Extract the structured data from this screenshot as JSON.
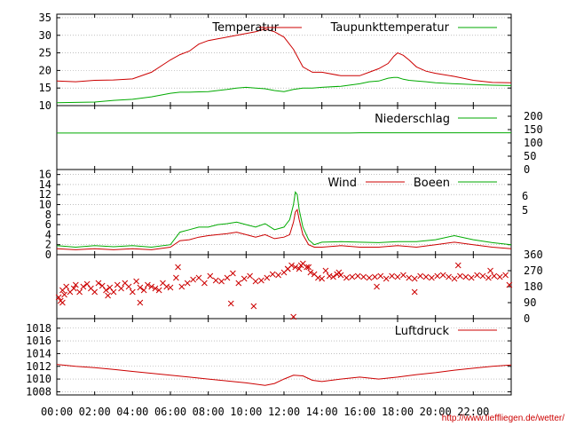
{
  "chart_data": [
    {
      "type": "line",
      "panel": "temperature",
      "title": "",
      "ylim": [
        10,
        36
      ],
      "yticks": [
        "10",
        "15",
        "20",
        "25",
        "30",
        "35"
      ],
      "grid": true,
      "legend_placement": "top-right",
      "x_hours": [
        0,
        1,
        2,
        3,
        4,
        5,
        6,
        6.5,
        7,
        7.5,
        8,
        8.5,
        9,
        9.5,
        10,
        10.5,
        11,
        11.5,
        12,
        12.5,
        13,
        13.5,
        14,
        15,
        16,
        16.5,
        17,
        17.5,
        17.8,
        18,
        18.3,
        18.6,
        19,
        19.5,
        20,
        21,
        22,
        23,
        24
      ],
      "series": [
        {
          "name": "Temperatur",
          "color": "#cc0000",
          "values": [
            17.0,
            16.8,
            17.2,
            17.3,
            17.6,
            19.5,
            23.0,
            24.5,
            25.5,
            27.5,
            28.5,
            29.0,
            29.5,
            30.0,
            30.5,
            31.0,
            31.8,
            31.0,
            29.5,
            26.0,
            21.0,
            19.5,
            19.5,
            18.5,
            18.5,
            19.5,
            20.5,
            22.0,
            24.0,
            25.0,
            24.3,
            23.0,
            21.0,
            19.8,
            19.2,
            18.3,
            17.2,
            16.6,
            16.5
          ]
        },
        {
          "name": "Taupunkttemperatur",
          "color": "#00aa00",
          "values": [
            10.8,
            10.9,
            11.0,
            11.5,
            11.8,
            12.5,
            13.5,
            13.8,
            13.8,
            13.9,
            14.0,
            14.3,
            14.6,
            15.0,
            15.2,
            15.0,
            14.8,
            14.3,
            14.0,
            14.6,
            15.0,
            15.0,
            15.2,
            15.5,
            16.2,
            16.8,
            17.0,
            17.8,
            18.0,
            18.0,
            17.5,
            17.2,
            17.0,
            16.8,
            16.5,
            16.2,
            16.0,
            15.8,
            15.7
          ]
        }
      ]
    },
    {
      "type": "line",
      "panel": "precipitation",
      "ylim": [
        0,
        240
      ],
      "yticks": [
        "0",
        "50",
        "100",
        "150",
        "200"
      ],
      "legend_placement": "top-right",
      "x_hours": [
        0,
        15.5,
        16,
        24
      ],
      "series": [
        {
          "name": "Niederschlag",
          "color": "#00aa00",
          "values": [
            137,
            137,
            138,
            138
          ]
        }
      ]
    },
    {
      "type": "line",
      "panel": "wind",
      "ylim": [
        0,
        17
      ],
      "yticks": [
        "0",
        "2",
        "4",
        "6",
        "8",
        "10",
        "12",
        "14",
        "16"
      ],
      "yticks_right": [
        "5",
        "6"
      ],
      "legend_placement": "top-right",
      "x_hours": [
        0,
        1,
        2,
        3,
        4,
        5,
        6,
        6.5,
        7,
        7.5,
        8,
        8.5,
        9,
        9.5,
        10,
        10.5,
        11,
        11.5,
        12,
        12.3,
        12.5,
        12.6,
        12.7,
        12.8,
        13,
        13.3,
        13.6,
        14,
        15,
        16,
        17,
        18,
        19,
        20,
        21,
        22,
        23,
        24
      ],
      "series": [
        {
          "name": "Wind",
          "color": "#cc0000",
          "values": [
            1.2,
            1.0,
            1.2,
            1.0,
            1.2,
            1.0,
            1.5,
            2.8,
            3.0,
            3.5,
            3.8,
            4.0,
            4.2,
            4.5,
            4.0,
            3.5,
            4.0,
            3.2,
            3.5,
            4.0,
            6.5,
            8.5,
            9.0,
            7.0,
            4.0,
            2.0,
            1.5,
            1.5,
            1.8,
            1.5,
            1.5,
            1.8,
            1.5,
            2.0,
            2.5,
            2.0,
            1.5,
            1.2
          ]
        },
        {
          "name": "Boeen",
          "color": "#00aa00",
          "values": [
            1.8,
            1.5,
            1.8,
            1.6,
            1.8,
            1.5,
            2.0,
            4.5,
            5.0,
            5.5,
            5.5,
            6.0,
            6.2,
            6.5,
            6.0,
            5.5,
            6.2,
            5.0,
            5.5,
            7.0,
            10.0,
            12.5,
            12.0,
            9.0,
            5.5,
            3.0,
            2.0,
            2.5,
            2.6,
            2.5,
            2.4,
            2.6,
            2.6,
            3.0,
            3.8,
            3.0,
            2.4,
            2.0
          ]
        }
      ]
    },
    {
      "type": "scatter",
      "panel": "wind-direction",
      "ylim": [
        0,
        360
      ],
      "yticks_right": [
        "0",
        "90",
        "180",
        "270",
        "360"
      ],
      "color": "#cc0000",
      "x_hours": [
        0.1,
        0.2,
        0.3,
        0.4,
        0.5,
        0.7,
        0.9,
        1.0,
        1.2,
        1.4,
        1.6,
        1.8,
        2.0,
        2.2,
        2.4,
        2.6,
        2.8,
        3.0,
        3.2,
        3.4,
        3.6,
        3.8,
        4.0,
        4.2,
        4.4,
        4.6,
        4.8,
        5.0,
        5.2,
        5.4,
        5.6,
        5.8,
        6.0,
        6.3,
        6.6,
        6.9,
        7.2,
        7.5,
        7.8,
        8.1,
        8.4,
        8.7,
        9.0,
        9.3,
        9.6,
        9.9,
        10.2,
        10.5,
        10.8,
        11.1,
        11.4,
        11.7,
        12.0,
        12.2,
        12.4,
        12.6,
        12.8,
        13.0,
        13.2,
        13.4,
        13.6,
        13.8,
        14.0,
        14.2,
        14.4,
        14.6,
        14.8,
        15.0,
        15.3,
        15.6,
        15.9,
        16.2,
        16.5,
        16.8,
        17.1,
        17.4,
        17.7,
        18.0,
        18.3,
        18.6,
        18.9,
        19.2,
        19.5,
        19.8,
        20.1,
        20.4,
        20.7,
        21.0,
        21.3,
        21.6,
        21.9,
        22.2,
        22.5,
        22.8,
        23.1,
        23.4,
        23.7,
        23.9,
        0.3,
        2.7,
        4.4,
        6.4,
        9.2,
        10.4,
        12.2,
        12.9,
        13.3,
        14.9,
        16.9,
        18.9,
        21.2,
        22.9,
        12.5
      ],
      "values": [
        120,
        100,
        160,
        135,
        180,
        150,
        170,
        190,
        150,
        180,
        195,
        170,
        150,
        200,
        185,
        160,
        175,
        150,
        190,
        170,
        200,
        180,
        150,
        210,
        175,
        160,
        190,
        180,
        170,
        160,
        200,
        180,
        175,
        230,
        180,
        200,
        220,
        230,
        200,
        240,
        215,
        210,
        230,
        255,
        200,
        225,
        240,
        210,
        215,
        230,
        250,
        245,
        260,
        280,
        300,
        290,
        280,
        310,
        290,
        260,
        250,
        230,
        225,
        270,
        240,
        235,
        250,
        245,
        230,
        235,
        240,
        235,
        230,
        235,
        240,
        225,
        240,
        235,
        245,
        230,
        225,
        240,
        235,
        230,
        240,
        245,
        235,
        225,
        240,
        235,
        230,
        245,
        240,
        230,
        240,
        235,
        245,
        190,
        90,
        130,
        90,
        290,
        85,
        70,
        280,
        300,
        290,
        260,
        180,
        150,
        300,
        270,
        10
      ]
    },
    {
      "type": "line",
      "panel": "pressure",
      "ylim": [
        1007.5,
        1019.5
      ],
      "yticks": [
        "1008",
        "1010",
        "1012",
        "1014",
        "1016",
        "1018"
      ],
      "legend_placement": "top-right",
      "x_hours": [
        0,
        1,
        2,
        3,
        4,
        5,
        6,
        7,
        8,
        9,
        10,
        11,
        11.5,
        12,
        12.5,
        13,
        13.5,
        14,
        15,
        16,
        17,
        18,
        19,
        20,
        21,
        22,
        23,
        24
      ],
      "series": [
        {
          "name": "Luftdruck",
          "color": "#cc0000",
          "values": [
            1012.3,
            1012.0,
            1011.8,
            1011.5,
            1011.2,
            1010.9,
            1010.6,
            1010.3,
            1010.0,
            1009.7,
            1009.4,
            1009.0,
            1009.3,
            1010.0,
            1010.6,
            1010.5,
            1009.8,
            1009.6,
            1010.0,
            1010.3,
            1010.0,
            1010.3,
            1010.7,
            1011.0,
            1011.4,
            1011.7,
            1012.0,
            1012.2
          ]
        }
      ]
    }
  ],
  "x_axis": {
    "range_hours": [
      0,
      24
    ],
    "tick_hours": [
      0,
      2,
      4,
      6,
      8,
      10,
      12,
      14,
      16,
      18,
      20,
      22
    ],
    "tick_labels": [
      "00:00",
      "02:00",
      "04:00",
      "06:00",
      "08:00",
      "10:00",
      "12:00",
      "14:00",
      "16:00",
      "18:00",
      "20:00",
      "22:00"
    ]
  },
  "credit": "http://www.tiefflieg​en.de/wetter/"
}
